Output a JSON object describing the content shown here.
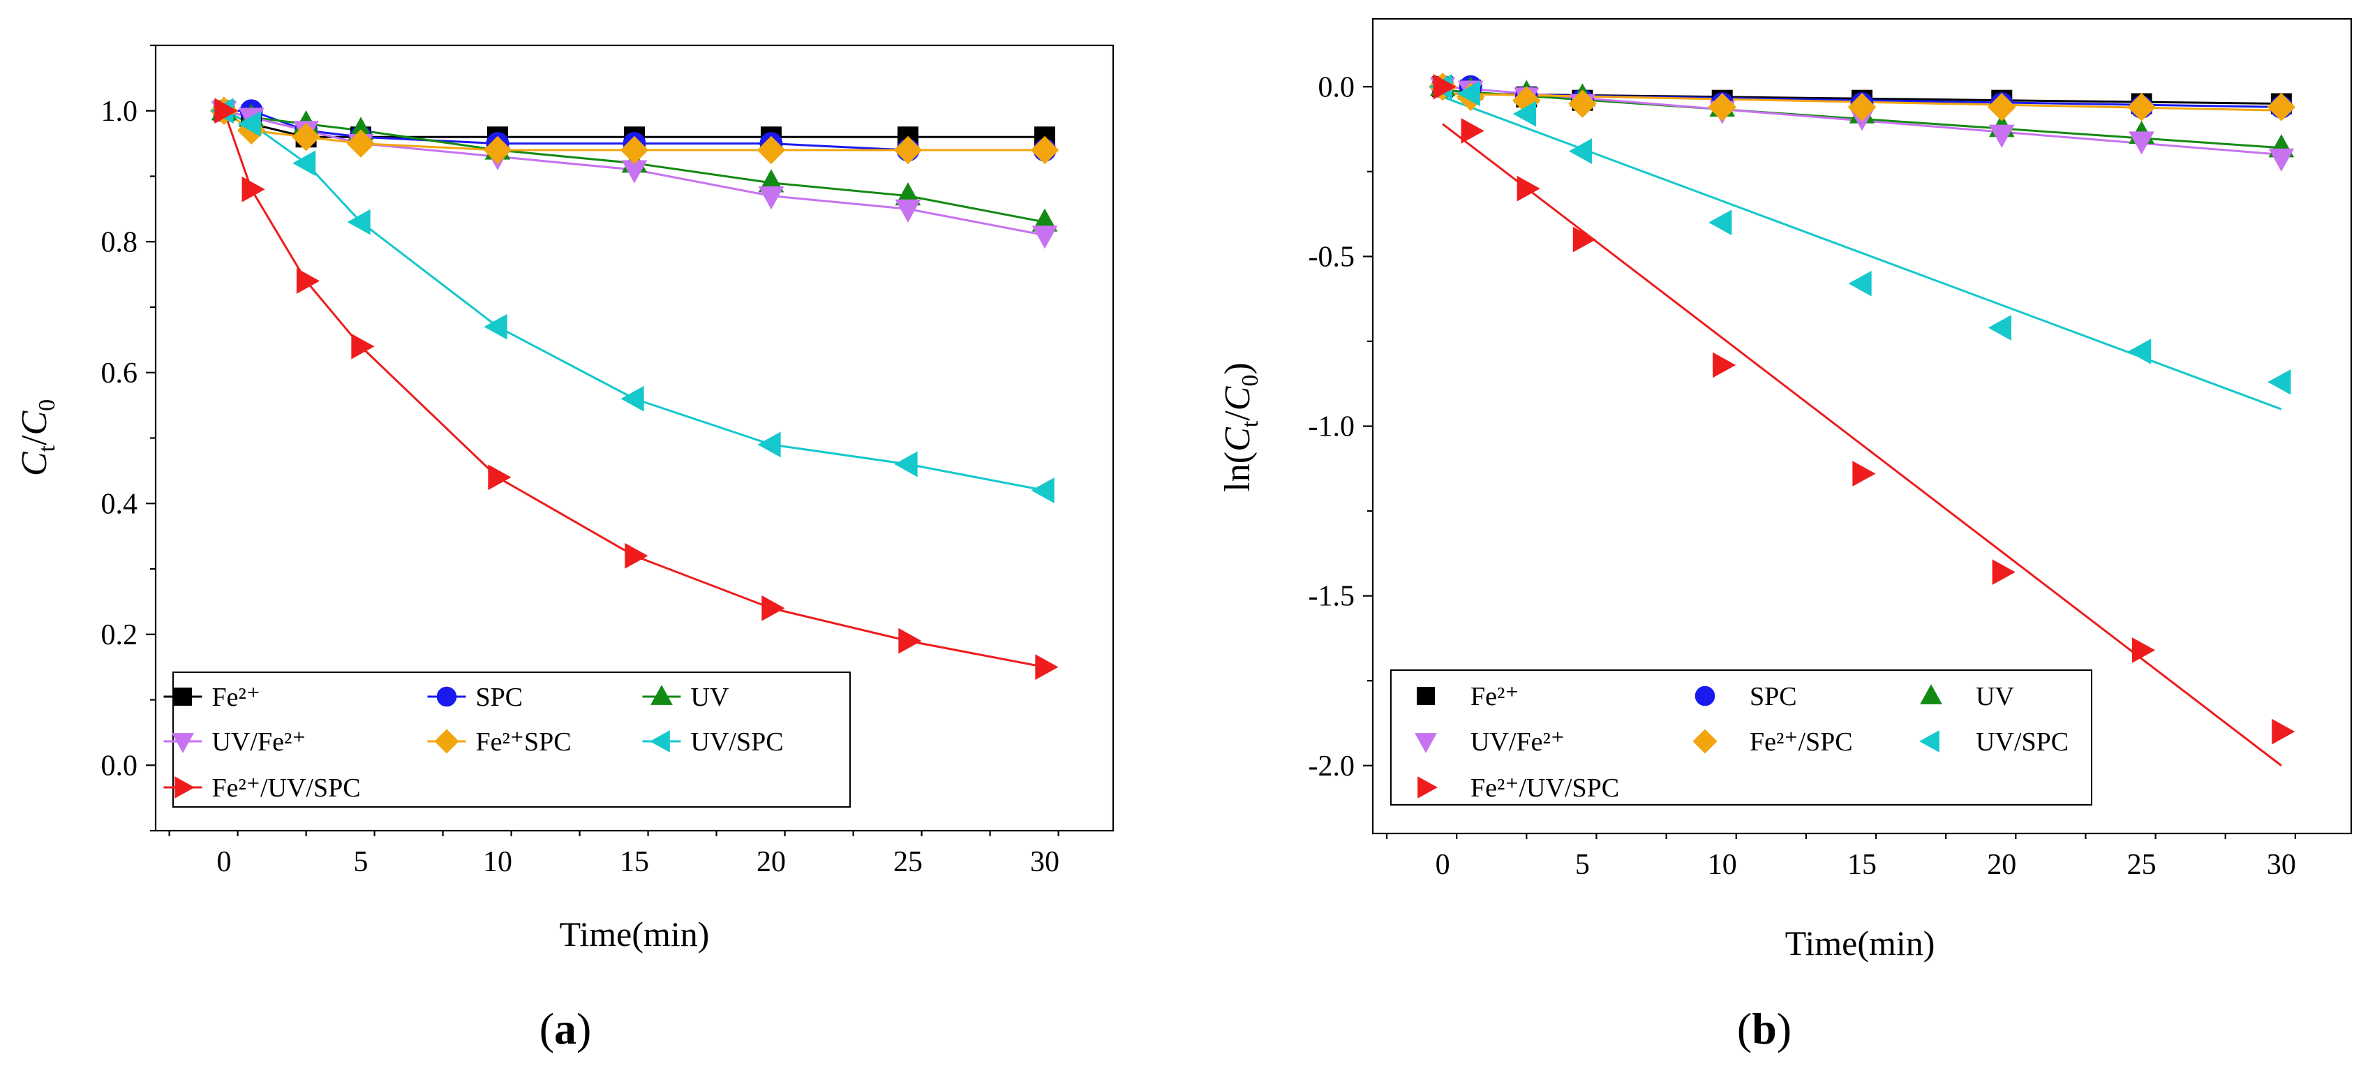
{
  "colors": {
    "fe2": "#000000",
    "spc": "#1a1aee",
    "uv": "#138a13",
    "uvfe": "#c772f0",
    "fespc": "#f2a50c",
    "uvspc": "#14c8cc",
    "feuvspc": "#ee1c1c"
  },
  "chart_data": [
    {
      "id": "a",
      "type": "line",
      "panel_label": "a",
      "xlabel": "Time(min)",
      "ylabel": {
        "main": "C",
        "sub1": "t",
        "sep": "/",
        "main2": "C",
        "sub2": "0"
      },
      "xlim": [
        -2.5,
        32.5
      ],
      "ylim": [
        -0.1,
        1.1
      ],
      "x_ticks": [
        0,
        5,
        10,
        15,
        20,
        25,
        30
      ],
      "x_tick_labels": [
        "0",
        "5",
        "10",
        "15",
        "20",
        "25",
        "30"
      ],
      "y_ticks": [
        0.0,
        0.2,
        0.4,
        0.6,
        0.8,
        1.0
      ],
      "y_tick_labels": [
        "0.0",
        "0.2",
        "0.4",
        "0.6",
        "0.8",
        "1.0"
      ],
      "x": [
        0,
        1,
        3,
        5,
        10,
        15,
        20,
        25,
        30
      ],
      "series": [
        {
          "key": "fe2",
          "name": "Fe²⁺",
          "marker": "square",
          "values": [
            1.0,
            0.98,
            0.96,
            0.96,
            0.96,
            0.96,
            0.96,
            0.96,
            0.96
          ]
        },
        {
          "key": "spc",
          "name": "SPC",
          "marker": "circle",
          "values": [
            1.0,
            1.0,
            0.97,
            0.96,
            0.95,
            0.95,
            0.95,
            0.94,
            0.94
          ]
        },
        {
          "key": "uv",
          "name": "UV",
          "marker": "triangle-up",
          "values": [
            1.0,
            0.99,
            0.98,
            0.97,
            0.94,
            0.92,
            0.89,
            0.87,
            0.83
          ]
        },
        {
          "key": "uvfe",
          "name": "UV/Fe²⁺",
          "marker": "triangle-down",
          "values": [
            1.0,
            0.99,
            0.97,
            0.95,
            0.93,
            0.91,
            0.87,
            0.85,
            0.81
          ]
        },
        {
          "key": "fespc",
          "name": "Fe²⁺SPC",
          "marker": "diamond",
          "values": [
            1.0,
            0.97,
            0.96,
            0.95,
            0.94,
            0.94,
            0.94,
            0.94,
            0.94
          ]
        },
        {
          "key": "uvspc",
          "name": "UV/SPC",
          "marker": "triangle-left",
          "values": [
            1.0,
            0.98,
            0.92,
            0.83,
            0.67,
            0.56,
            0.49,
            0.46,
            0.42
          ]
        },
        {
          "key": "feuvspc",
          "name": "Fe²⁺/UV/SPC",
          "marker": "triangle-right",
          "values": [
            1.0,
            0.88,
            0.74,
            0.64,
            0.44,
            0.32,
            0.24,
            0.19,
            0.15
          ]
        }
      ],
      "legend": "bottom-left"
    },
    {
      "id": "b",
      "type": "scatter",
      "panel_label": "b",
      "xlabel": "Time(min)",
      "ylabel": {
        "prefix": "ln(",
        "main": "C",
        "sub1": "t",
        "sep": "/",
        "main2": "C",
        "sub2": "0",
        "suffix": ")"
      },
      "xlim": [
        -2.5,
        32.5
      ],
      "ylim": [
        -2.2,
        0.2
      ],
      "x_ticks": [
        0,
        5,
        10,
        15,
        20,
        25,
        30
      ],
      "x_tick_labels": [
        "0",
        "5",
        "10",
        "15",
        "20",
        "25",
        "30"
      ],
      "y_ticks": [
        0.0,
        -0.5,
        -1.0,
        -1.5,
        -2.0
      ],
      "y_tick_labels": [
        "0.0",
        "-0.5",
        "-1.0",
        "-1.5",
        "-2.0"
      ],
      "x": [
        0,
        1,
        3,
        5,
        10,
        15,
        20,
        25,
        30
      ],
      "series": [
        {
          "key": "fe2",
          "name": "Fe²⁺",
          "marker": "square",
          "values": [
            0.0,
            -0.01,
            -0.03,
            -0.04,
            -0.04,
            -0.04,
            -0.04,
            -0.05,
            -0.05
          ],
          "fit": [
            [
              0,
              -0.02
            ],
            [
              30,
              -0.05
            ]
          ]
        },
        {
          "key": "spc",
          "name": "SPC",
          "marker": "circle",
          "values": [
            0.0,
            0.0,
            -0.03,
            -0.04,
            -0.05,
            -0.05,
            -0.05,
            -0.06,
            -0.06
          ],
          "fit": [
            [
              0,
              -0.02
            ],
            [
              30,
              -0.06
            ]
          ]
        },
        {
          "key": "uv",
          "name": "UV",
          "marker": "triangle-up",
          "values": [
            0.0,
            -0.01,
            -0.02,
            -0.03,
            -0.06,
            -0.08,
            -0.12,
            -0.14,
            -0.18
          ],
          "fit": [
            [
              0,
              -0.01
            ],
            [
              30,
              -0.18
            ]
          ]
        },
        {
          "key": "uvfe",
          "name": "UV/Fe²⁺",
          "marker": "triangle-down",
          "values": [
            0.0,
            -0.01,
            -0.03,
            -0.05,
            -0.07,
            -0.09,
            -0.14,
            -0.16,
            -0.21
          ],
          "fit": [
            [
              0,
              0.0
            ],
            [
              30,
              -0.2
            ]
          ]
        },
        {
          "key": "fespc",
          "name": "Fe²⁺/SPC",
          "marker": "diamond",
          "values": [
            0.0,
            -0.03,
            -0.04,
            -0.05,
            -0.06,
            -0.06,
            -0.06,
            -0.06,
            -0.06
          ],
          "fit": [
            [
              0,
              -0.02
            ],
            [
              30,
              -0.07
            ]
          ]
        },
        {
          "key": "uvspc",
          "name": "UV/SPC",
          "marker": "triangle-left",
          "values": [
            0.0,
            -0.02,
            -0.08,
            -0.19,
            -0.4,
            -0.58,
            -0.71,
            -0.78,
            -0.87
          ],
          "fit": [
            [
              0,
              -0.03
            ],
            [
              30,
              -0.95
            ]
          ]
        },
        {
          "key": "feuvspc",
          "name": "Fe²⁺/UV/SPC",
          "marker": "triangle-right",
          "values": [
            0.0,
            -0.13,
            -0.3,
            -0.45,
            -0.82,
            -1.14,
            -1.43,
            -1.66,
            -1.9
          ],
          "fit": [
            [
              0,
              -0.11
            ],
            [
              30,
              -2.0
            ]
          ]
        }
      ],
      "legend": "bottom-left"
    }
  ]
}
